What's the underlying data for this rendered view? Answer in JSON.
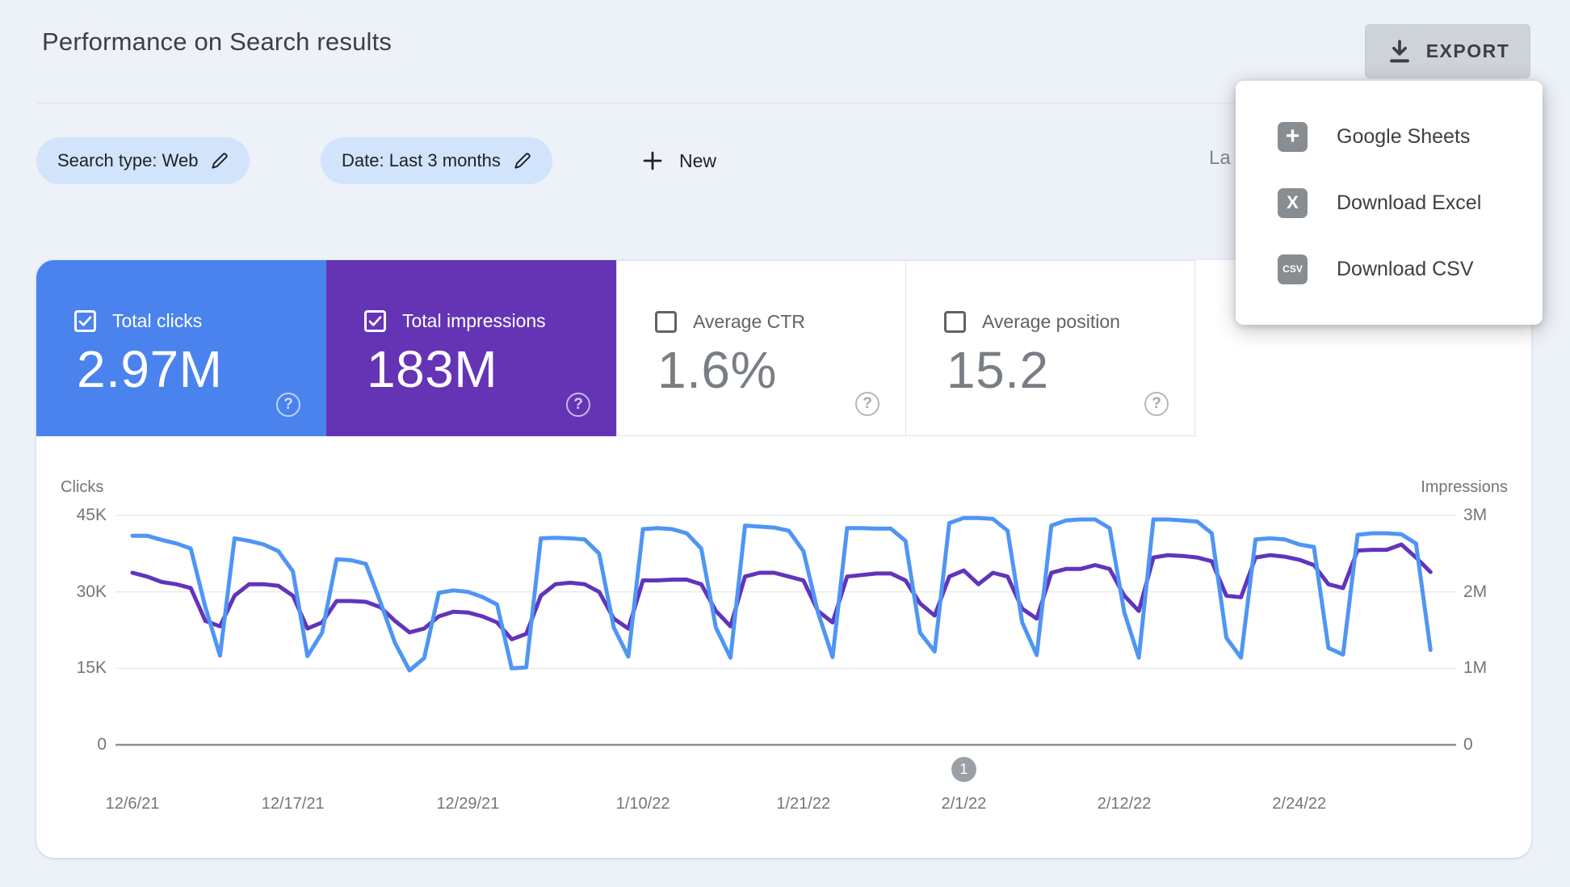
{
  "header": {
    "title": "Performance on Search results",
    "export_label": "EXPORT"
  },
  "filters": {
    "search_type_chip": "Search type: Web",
    "date_chip": "Date: Last 3 months",
    "new_button": "New",
    "last_updated_partial": "La"
  },
  "export_menu": {
    "items": [
      {
        "icon": "google-sheets-icon",
        "icon_text": "+",
        "icon_font": 30,
        "label": "Google Sheets"
      },
      {
        "icon": "excel-icon",
        "icon_text": "X",
        "icon_font": 22,
        "label": "Download Excel"
      },
      {
        "icon": "csv-icon",
        "icon_text": "CSV",
        "icon_font": 12,
        "label": "Download CSV"
      }
    ]
  },
  "metrics": [
    {
      "label": "Total clicks",
      "value": "2.97M",
      "checked": true,
      "color": "#4a83ee"
    },
    {
      "label": "Total impressions",
      "value": "183M",
      "checked": true,
      "color": "#6534b5"
    },
    {
      "label": "Average CTR",
      "value": "1.6%",
      "checked": false,
      "color": "#ffffff"
    },
    {
      "label": "Average position",
      "value": "15.2",
      "checked": false,
      "color": "#ffffff"
    }
  ],
  "chart_data": {
    "type": "line",
    "start_date": "12/6/21",
    "x_axis_labels": [
      {
        "label": "12/6/21",
        "day": 0
      },
      {
        "label": "12/17/21",
        "day": 11
      },
      {
        "label": "12/29/21",
        "day": 23
      },
      {
        "label": "1/10/22",
        "day": 35
      },
      {
        "label": "1/21/22",
        "day": 46
      },
      {
        "label": "2/1/22",
        "day": 57
      },
      {
        "label": "2/12/22",
        "day": 68
      },
      {
        "label": "2/24/22",
        "day": 80
      }
    ],
    "left_axis": {
      "title": "Clicks",
      "range": [
        0,
        45000
      ],
      "ticks": [
        {
          "label": "45K",
          "value": 45000
        },
        {
          "label": "30K",
          "value": 30000
        },
        {
          "label": "15K",
          "value": 15000
        },
        {
          "label": "0",
          "value": 0
        }
      ]
    },
    "right_axis": {
      "title": "Impressions",
      "range": [
        0,
        3000000
      ],
      "ticks": [
        {
          "label": "3M",
          "value": 3000000
        },
        {
          "label": "2M",
          "value": 2000000
        },
        {
          "label": "1M",
          "value": 1000000
        },
        {
          "label": "0",
          "value": 0
        }
      ]
    },
    "marker": {
      "label": "1",
      "day": 57
    },
    "series": [
      {
        "name": "Impressions",
        "axis": "right",
        "color": "#6134bc",
        "values": [
          2250000,
          2200000,
          2130000,
          2100000,
          2050000,
          1620000,
          1550000,
          1950000,
          2100000,
          2100000,
          2080000,
          1950000,
          1520000,
          1600000,
          1880000,
          1880000,
          1870000,
          1800000,
          1620000,
          1470000,
          1520000,
          1680000,
          1740000,
          1730000,
          1680000,
          1600000,
          1380000,
          1450000,
          1950000,
          2100000,
          2120000,
          2100000,
          2000000,
          1650000,
          1520000,
          2150000,
          2150000,
          2160000,
          2160000,
          2100000,
          1750000,
          1550000,
          2200000,
          2250000,
          2250000,
          2200000,
          2150000,
          1750000,
          1600000,
          2200000,
          2220000,
          2240000,
          2240000,
          2150000,
          1850000,
          1690000,
          2200000,
          2280000,
          2100000,
          2250000,
          2200000,
          1780000,
          1650000,
          2250000,
          2300000,
          2300000,
          2350000,
          2300000,
          1950000,
          1750000,
          2450000,
          2480000,
          2470000,
          2450000,
          2400000,
          1950000,
          1930000,
          2450000,
          2480000,
          2460000,
          2420000,
          2350000,
          2100000,
          2050000,
          2540000,
          2550000,
          2550000,
          2620000,
          2450000,
          2260000
        ]
      },
      {
        "name": "Clicks",
        "axis": "left",
        "color": "#4f95f4",
        "values": [
          41000,
          41000,
          40200,
          39500,
          38500,
          27000,
          17500,
          40500,
          40000,
          39300,
          38000,
          34000,
          17400,
          22000,
          36400,
          36200,
          35500,
          28000,
          20000,
          14600,
          17000,
          29800,
          30300,
          30000,
          29000,
          27500,
          15000,
          15200,
          40500,
          40600,
          40500,
          40300,
          37500,
          23000,
          17300,
          42300,
          42500,
          42300,
          41500,
          38500,
          23000,
          17100,
          43000,
          42800,
          42600,
          42000,
          38000,
          26000,
          17200,
          42500,
          42500,
          42400,
          42400,
          40000,
          22000,
          18300,
          43500,
          44500,
          44500,
          44300,
          42000,
          24000,
          17600,
          43000,
          44000,
          44200,
          44200,
          42500,
          26000,
          17100,
          44200,
          44200,
          44000,
          43800,
          41500,
          21000,
          17100,
          40300,
          40500,
          40300,
          39300,
          38800,
          19000,
          17700,
          41200,
          41500,
          41500,
          41300,
          39500,
          18600
        ]
      }
    ]
  }
}
